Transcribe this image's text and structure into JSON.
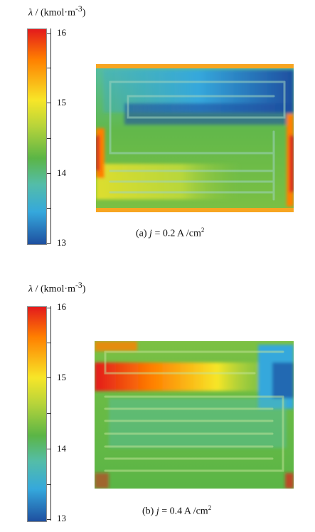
{
  "colors": {
    "max": "#e31a1c",
    "high": "#ff7f00",
    "mid_high": "#f7e628",
    "mid": "#5bb546",
    "mid_low": "#54bda8",
    "low": "#35a8dc",
    "min": "#1e4fa0"
  },
  "panels": [
    {
      "unit_symbol": "λ",
      "unit_text": " / (kmol·m",
      "unit_exp": "-3",
      "unit_close": ")",
      "scale": {
        "max_label": "16",
        "tick_15": "15",
        "tick_14": "14",
        "min_label": "13"
      },
      "caption_prefix": "(a) ",
      "caption_var": "j",
      "caption_value": " = 0.2 A /cm",
      "caption_exp": "2"
    },
    {
      "unit_symbol": "λ",
      "unit_text": " / (kmol·m",
      "unit_exp": "-3",
      "unit_close": ")",
      "scale": {
        "max_label": "16",
        "tick_15": "15",
        "tick_14": "14",
        "min_label": "13"
      },
      "caption_prefix": "(b) ",
      "caption_var": "j",
      "caption_value": " = 0.4 A /cm",
      "caption_exp": "2"
    }
  ]
}
